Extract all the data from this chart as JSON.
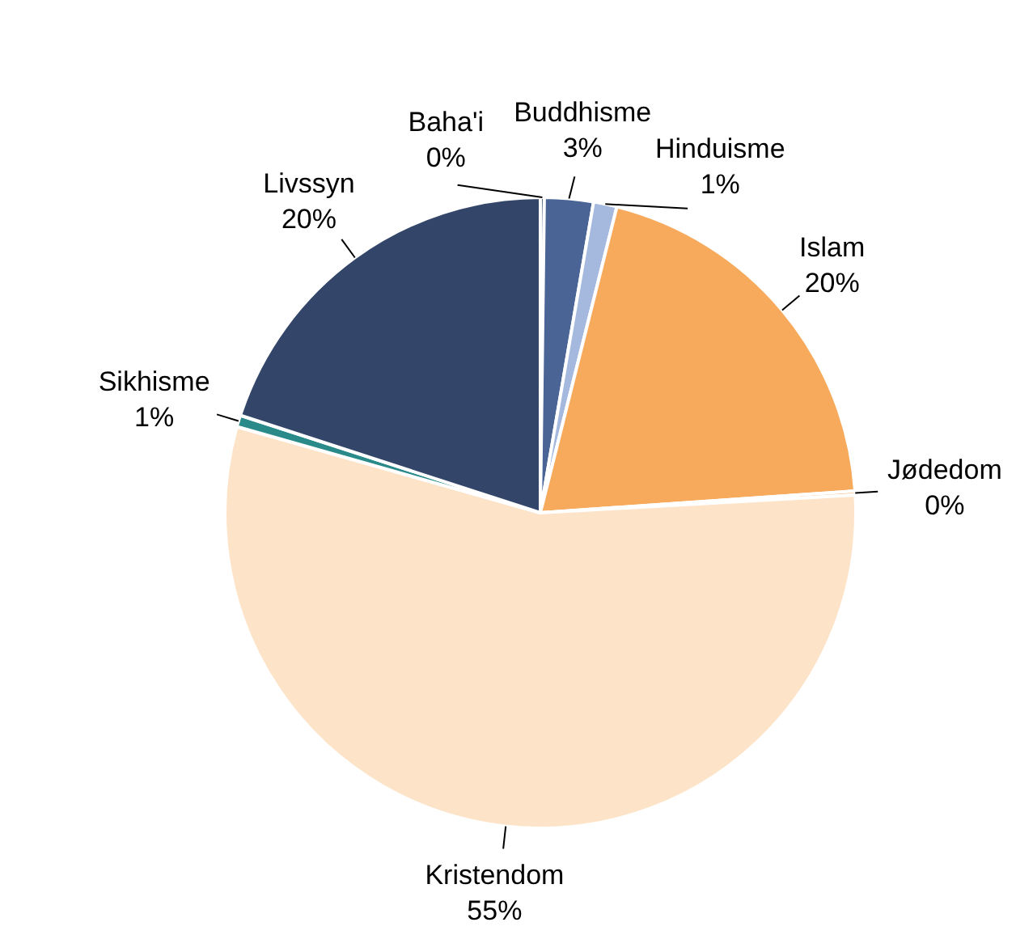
{
  "chart_data": {
    "type": "pie",
    "categories": [
      "Baha'i",
      "Buddhisme",
      "Hinduisme",
      "Islam",
      "Jødedom",
      "Kristendom",
      "Sikhisme",
      "Livssyn"
    ],
    "values": [
      0.2,
      2.5,
      1.2,
      20,
      0.2,
      55.3,
      0.6,
      20
    ],
    "value_labels": [
      "0%",
      "3%",
      "1%",
      "20%",
      "0%",
      "55%",
      "1%",
      "20%"
    ],
    "colors": [
      "#1f3864",
      "#4a6496",
      "#a5b8dd",
      "#f7a95c",
      "#f9b77a",
      "#fde3c8",
      "#2a8a8a",
      "#334669"
    ],
    "legend": false
  }
}
